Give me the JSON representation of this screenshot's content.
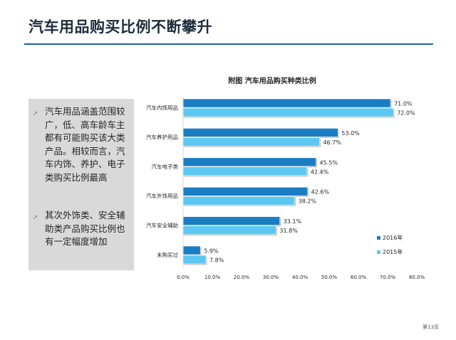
{
  "slide": {
    "title": "汽车用品购买比例不断攀升",
    "page_number": "第13页"
  },
  "sidebar": {
    "bullets": [
      {
        "icon": "arrow-up-right-icon",
        "text": "汽车用品涵盖范围较广，低、高车龄车主都有可能购买该大类产品。相较而言，汽车内饰、养护、电子类购买比例最高"
      },
      {
        "icon": "arrow-up-right-icon",
        "text": "其次外饰类、安全辅助类产品购买比例也有一定幅度增加"
      }
    ]
  },
  "chart_data": {
    "type": "bar",
    "orientation": "horizontal",
    "title": "附图 汽车用品购买种类比例",
    "categories": [
      "汽车内饰用品",
      "汽车养护用品",
      "汽车电子类",
      "汽车外饰用品",
      "汽车安全辅助",
      "未购买过"
    ],
    "series": [
      {
        "name": "2016年",
        "color": "#1a7dc4",
        "values": [
          71.0,
          53.0,
          45.5,
          42.6,
          33.1,
          5.9
        ]
      },
      {
        "name": "2015年",
        "color": "#5cc8f2",
        "values": [
          72.0,
          46.7,
          42.4,
          38.2,
          31.8,
          7.8
        ]
      }
    ],
    "data_labels": [
      [
        "71.0%",
        "53.0%",
        "45.5%",
        "42.6%",
        "33.1%",
        "5.9%"
      ],
      [
        "72.0%",
        "46.7%",
        "42.4%",
        "38.2%",
        "31.8%",
        "7.8%"
      ]
    ],
    "x_ticks": [
      "0.0%",
      "10.0%",
      "20.0%",
      "30.0%",
      "40.0%",
      "50.0%",
      "60.0%",
      "70.0%",
      "80.0%"
    ],
    "xlim": [
      0,
      80
    ],
    "legend_position": "right",
    "grid": false
  }
}
